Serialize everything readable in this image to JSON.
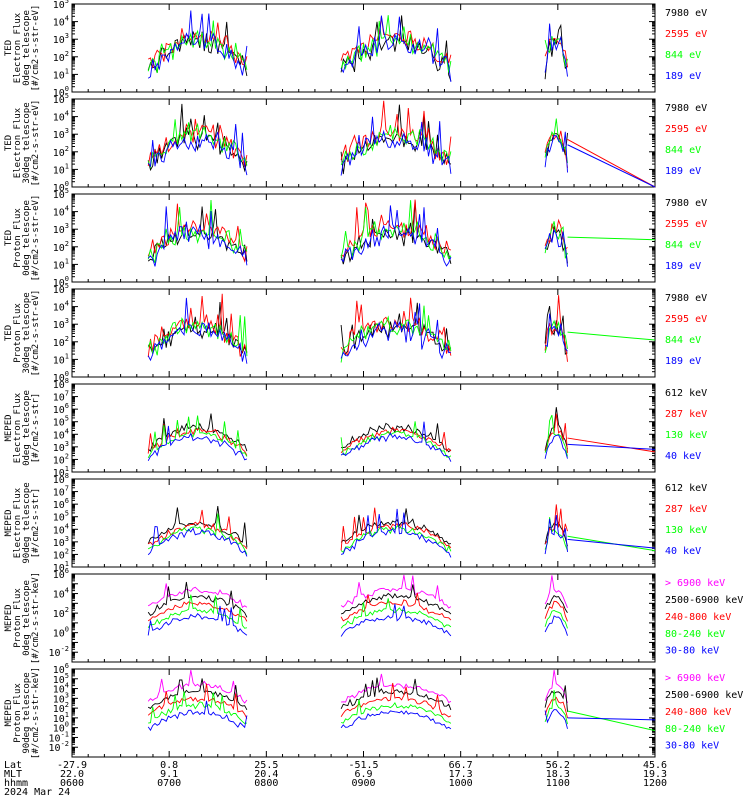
{
  "colors": {
    "black": "#000000",
    "red": "#ff0000",
    "green": "#00ff00",
    "blue": "#0000ff",
    "magenta": "#ff00ff",
    "background": "#ffffff"
  },
  "chart_data": [
    {
      "type": "line",
      "ylabel": [
        "TED",
        "Electron Flux",
        "0deg telescope",
        "[#/cm2-s-str-eV]"
      ],
      "ylim_exponent": [
        0,
        5
      ],
      "ytick_exponents": [
        0,
        1,
        2,
        3,
        4,
        5
      ],
      "log_scale": true,
      "series": [
        {
          "name": "7980 eV",
          "color": "#000000",
          "active": [
            [
              0.13,
              0.3
            ],
            [
              0.46,
              0.65
            ],
            [
              0.81,
              0.85
            ]
          ]
        },
        {
          "name": "2595 eV",
          "color": "#ff0000",
          "active": [
            [
              0.13,
              0.3
            ],
            [
              0.46,
              0.65
            ],
            [
              0.81,
              0.85
            ]
          ]
        },
        {
          "name": "844 eV",
          "color": "#00ff00",
          "active": [
            [
              0.13,
              0.3
            ],
            [
              0.46,
              0.65
            ],
            [
              0.81,
              0.85
            ]
          ]
        },
        {
          "name": "189 eV",
          "color": "#0000ff",
          "active": [
            [
              0.13,
              0.3
            ],
            [
              0.46,
              0.65
            ],
            [
              0.81,
              0.85
            ]
          ]
        }
      ]
    },
    {
      "type": "line",
      "ylabel": [
        "TED",
        "Electron Flux",
        "30deg telescope",
        "[#/cm2-s-str-eV]"
      ],
      "ylim_exponent": [
        0,
        5
      ],
      "ytick_exponents": [
        0,
        1,
        2,
        3,
        4,
        5
      ],
      "log_scale": true,
      "series": [
        {
          "name": "7980 eV",
          "color": "#000000",
          "active": [
            [
              0.13,
              0.3
            ],
            [
              0.46,
              0.65
            ],
            [
              0.81,
              0.85
            ]
          ]
        },
        {
          "name": "2595 eV",
          "color": "#ff0000",
          "active": [
            [
              0.13,
              0.3
            ],
            [
              0.46,
              0.65
            ],
            [
              0.81,
              0.85
            ]
          ],
          "tail_to": 0.0
        },
        {
          "name": "844 eV",
          "color": "#00ff00",
          "active": [
            [
              0.13,
              0.3
            ],
            [
              0.46,
              0.65
            ],
            [
              0.81,
              0.85
            ]
          ]
        },
        {
          "name": "189 eV",
          "color": "#0000ff",
          "active": [
            [
              0.13,
              0.3
            ],
            [
              0.46,
              0.65
            ],
            [
              0.81,
              0.85
            ]
          ],
          "tail_to": 0.0
        }
      ]
    },
    {
      "type": "line",
      "ylabel": [
        "TED",
        "Proton Flux",
        "0deg telescope",
        "[#/cm2-s-str-eV]"
      ],
      "ylim_exponent": [
        0,
        5
      ],
      "ytick_exponents": [
        0,
        1,
        2,
        3,
        4,
        5
      ],
      "log_scale": true,
      "series": [
        {
          "name": "7980 eV",
          "color": "#000000",
          "active": [
            [
              0.13,
              0.3
            ],
            [
              0.46,
              0.65
            ],
            [
              0.81,
              0.85
            ]
          ]
        },
        {
          "name": "2595 eV",
          "color": "#ff0000",
          "active": [
            [
              0.13,
              0.3
            ],
            [
              0.46,
              0.65
            ],
            [
              0.81,
              0.85
            ]
          ]
        },
        {
          "name": "844 eV",
          "color": "#00ff00",
          "active": [
            [
              0.13,
              0.3
            ],
            [
              0.46,
              0.65
            ],
            [
              0.81,
              0.85
            ]
          ],
          "tail_to": 2.4
        },
        {
          "name": "189 eV",
          "color": "#0000ff",
          "active": [
            [
              0.13,
              0.3
            ],
            [
              0.46,
              0.65
            ],
            [
              0.81,
              0.85
            ]
          ]
        }
      ]
    },
    {
      "type": "line",
      "ylabel": [
        "TED",
        "Proton Flux",
        "30deg telescope",
        "[#/cm2-s-str-eV]"
      ],
      "ylim_exponent": [
        0,
        5
      ],
      "ytick_exponents": [
        0,
        1,
        2,
        3,
        4,
        5
      ],
      "log_scale": true,
      "series": [
        {
          "name": "7980 eV",
          "color": "#000000",
          "active": [
            [
              0.13,
              0.3
            ],
            [
              0.46,
              0.65
            ],
            [
              0.81,
              0.85
            ]
          ]
        },
        {
          "name": "2595 eV",
          "color": "#ff0000",
          "active": [
            [
              0.13,
              0.3
            ],
            [
              0.46,
              0.65
            ],
            [
              0.81,
              0.85
            ]
          ]
        },
        {
          "name": "844 eV",
          "color": "#00ff00",
          "active": [
            [
              0.13,
              0.3
            ],
            [
              0.46,
              0.65
            ],
            [
              0.81,
              0.85
            ]
          ],
          "tail_to": 2.1
        },
        {
          "name": "189 eV",
          "color": "#0000ff",
          "active": [
            [
              0.13,
              0.3
            ],
            [
              0.46,
              0.65
            ],
            [
              0.81,
              0.85
            ]
          ]
        }
      ]
    },
    {
      "type": "line",
      "ylabel": [
        "MEPED",
        "Electron Flux",
        "0deg telescope",
        "[#/cm2-s-str]"
      ],
      "ylim_exponent": [
        1,
        8
      ],
      "ytick_exponents": [
        1,
        2,
        3,
        4,
        5,
        6,
        7,
        8
      ],
      "log_scale": true,
      "series": [
        {
          "name": "612 keV",
          "color": "#000000",
          "active": [
            [
              0.13,
              0.3
            ],
            [
              0.46,
              0.65
            ],
            [
              0.81,
              0.85
            ]
          ]
        },
        {
          "name": "287 keV",
          "color": "#ff0000",
          "active": [
            [
              0.13,
              0.3
            ],
            [
              0.46,
              0.65
            ],
            [
              0.81,
              0.85
            ]
          ],
          "tail_to": 2.6
        },
        {
          "name": "130 keV",
          "color": "#00ff00",
          "active": [
            [
              0.13,
              0.3
            ],
            [
              0.46,
              0.65
            ],
            [
              0.81,
              0.85
            ]
          ]
        },
        {
          "name": "40 keV",
          "color": "#0000ff",
          "active": [
            [
              0.13,
              0.3
            ],
            [
              0.46,
              0.65
            ],
            [
              0.81,
              0.85
            ]
          ],
          "tail_to": 2.8
        }
      ]
    },
    {
      "type": "line",
      "ylabel": [
        "MEPED",
        "Electron Flux",
        "90deg telescope",
        "[#/cm2-s-str]"
      ],
      "ylim_exponent": [
        1,
        8
      ],
      "ytick_exponents": [
        1,
        2,
        3,
        4,
        5,
        6,
        7,
        8
      ],
      "log_scale": true,
      "series": [
        {
          "name": "612 keV",
          "color": "#000000",
          "active": [
            [
              0.13,
              0.3
            ],
            [
              0.46,
              0.65
            ],
            [
              0.81,
              0.85
            ]
          ]
        },
        {
          "name": "287 keV",
          "color": "#ff0000",
          "active": [
            [
              0.13,
              0.3
            ],
            [
              0.46,
              0.65
            ],
            [
              0.81,
              0.85
            ]
          ]
        },
        {
          "name": "130 keV",
          "color": "#00ff00",
          "active": [
            [
              0.13,
              0.3
            ],
            [
              0.46,
              0.65
            ],
            [
              0.81,
              0.85
            ]
          ],
          "tail_to": 2.3
        },
        {
          "name": "40 keV",
          "color": "#0000ff",
          "active": [
            [
              0.13,
              0.3
            ],
            [
              0.46,
              0.65
            ],
            [
              0.81,
              0.85
            ]
          ],
          "tail_to": 2.5
        }
      ]
    },
    {
      "type": "line",
      "ylabel": [
        "MEPED",
        "Proton Flux",
        "0deg telescope",
        "[#/cm2-s-str-keV]"
      ],
      "ylim_exponent": [
        -3,
        6
      ],
      "ytick_exponents": [
        -2,
        0,
        2,
        4,
        6
      ],
      "log_scale": true,
      "series": [
        {
          "name": "> 6900 keV",
          "color": "#ff00ff",
          "active": [
            [
              0.13,
              0.3
            ],
            [
              0.46,
              0.65
            ],
            [
              0.81,
              0.85
            ]
          ]
        },
        {
          "name": "2500-6900 keV",
          "color": "#000000",
          "active": [
            [
              0.13,
              0.3
            ],
            [
              0.46,
              0.65
            ],
            [
              0.81,
              0.85
            ]
          ]
        },
        {
          "name": "240-800 keV",
          "color": "#ff0000",
          "active": [
            [
              0.13,
              0.3
            ],
            [
              0.46,
              0.65
            ],
            [
              0.81,
              0.85
            ]
          ]
        },
        {
          "name": "80-240 keV",
          "color": "#00ff00",
          "active": [
            [
              0.13,
              0.3
            ],
            [
              0.46,
              0.65
            ],
            [
              0.81,
              0.85
            ]
          ]
        },
        {
          "name": "30-80 keV",
          "color": "#0000ff",
          "active": [
            [
              0.13,
              0.3
            ],
            [
              0.46,
              0.65
            ],
            [
              0.81,
              0.85
            ]
          ]
        }
      ]
    },
    {
      "type": "line",
      "ylabel": [
        "MEPED",
        "Proton Flux",
        "90deg telescope",
        "[#/cm2-s-str-keV]"
      ],
      "ylim_exponent": [
        -3,
        6
      ],
      "ytick_exponents": [
        -2,
        -1,
        0,
        1,
        2,
        3,
        4,
        5,
        6
      ],
      "log_scale": true,
      "series": [
        {
          "name": "> 6900 keV",
          "color": "#ff00ff",
          "active": [
            [
              0.13,
              0.3
            ],
            [
              0.46,
              0.65
            ],
            [
              0.81,
              0.85
            ]
          ]
        },
        {
          "name": "2500-6900 keV",
          "color": "#000000",
          "active": [
            [
              0.13,
              0.3
            ],
            [
              0.46,
              0.65
            ],
            [
              0.81,
              0.85
            ]
          ]
        },
        {
          "name": "240-800 keV",
          "color": "#ff0000",
          "active": [
            [
              0.13,
              0.3
            ],
            [
              0.46,
              0.65
            ],
            [
              0.81,
              0.85
            ]
          ]
        },
        {
          "name": "80-240 keV",
          "color": "#00ff00",
          "active": [
            [
              0.13,
              0.3
            ],
            [
              0.46,
              0.65
            ],
            [
              0.81,
              0.85
            ]
          ],
          "tail_to": -0.3
        },
        {
          "name": "30-80 keV",
          "color": "#0000ff",
          "active": [
            [
              0.13,
              0.3
            ],
            [
              0.46,
              0.65
            ],
            [
              0.81,
              0.85
            ]
          ],
          "tail_to": 0.8
        }
      ]
    }
  ],
  "x_axis": {
    "row_labels": [
      "Lat",
      "MLT",
      "hhmm",
      "2024 Mar 24"
    ],
    "ticks": [
      {
        "lat": "-27.9",
        "mlt": "22.0",
        "hhmm": "0600"
      },
      {
        "lat": "0.8",
        "mlt": "9.1",
        "hhmm": "0700"
      },
      {
        "lat": "25.5",
        "mlt": "20.4",
        "hhmm": "0800"
      },
      {
        "lat": "-51.5",
        "mlt": "6.9",
        "hhmm": "0900"
      },
      {
        "lat": "66.7",
        "mlt": "17.3",
        "hhmm": "1000"
      },
      {
        "lat": "56.2",
        "mlt": "18.3",
        "hhmm": "1100"
      },
      {
        "lat": "45.6",
        "mlt": "19.3",
        "hhmm": "1200"
      }
    ]
  }
}
